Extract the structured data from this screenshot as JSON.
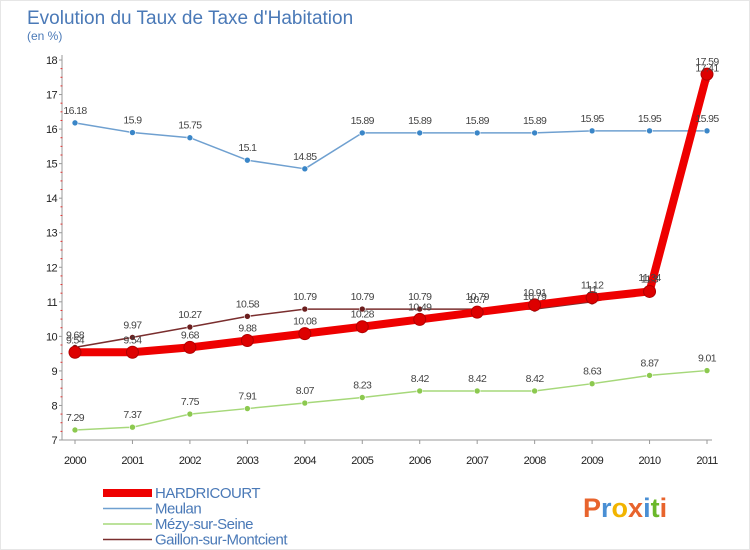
{
  "header": {
    "title": "Evolution du Taux de Taxe d'Habitation",
    "subtitle": "(en %)"
  },
  "logo": {
    "text": "Proxiti",
    "letters": [
      "P",
      "r",
      "o",
      "x",
      "i",
      "t",
      "i"
    ],
    "colors": [
      "#e8642d",
      "#4a8fd4",
      "#f2b400",
      "#e8642d",
      "#4a8fd4",
      "#6bb82a",
      "#e8642d"
    ]
  },
  "chart_data": {
    "type": "line",
    "title": "Evolution du Taux de Taxe d'Habitation",
    "subtitle": "(en %)",
    "x": [
      "2000",
      "2001",
      "2002",
      "2003",
      "2004",
      "2005",
      "2006",
      "2007",
      "2008",
      "2009",
      "2010",
      "2011"
    ],
    "yticks": [
      "7",
      "8",
      "9",
      "10",
      "11",
      "12",
      "13",
      "14",
      "15",
      "16",
      "17",
      "18"
    ],
    "ylim": [
      7,
      18
    ],
    "grid": false,
    "legend_position": "bottom-left",
    "series": [
      {
        "name": "Meulan",
        "color": "#6fa0d0",
        "marker_color": "#3a86c8",
        "values": [
          16.18,
          15.9,
          15.75,
          15.1,
          14.85,
          15.89,
          15.89,
          15.89,
          15.89,
          15.95,
          15.95,
          15.95
        ],
        "labels": [
          "16.18",
          "15.9",
          "15.75",
          "15.1",
          "14.85",
          "15.89",
          "15.89",
          "15.89",
          "15.89",
          "15.95",
          "15.95",
          "15.95"
        ]
      },
      {
        "name": "Mézy-sur-Seine",
        "color": "#a6d87a",
        "marker_color": "#8cc94f",
        "values": [
          7.29,
          7.37,
          7.75,
          7.91,
          8.07,
          8.23,
          8.42,
          8.42,
          8.42,
          8.63,
          8.87,
          9.01
        ],
        "labels": [
          "7.29",
          "7.37",
          "7.75",
          "7.91",
          "8.07",
          "8.23",
          "8.42",
          "8.42",
          "8.42",
          "8.63",
          "8.87",
          "9.01"
        ]
      },
      {
        "name": "Gaillon-sur-Montcient",
        "color": "#7a2e2e",
        "marker_color": "#6b1e1e",
        "values": [
          9.68,
          9.97,
          10.27,
          10.58,
          10.79,
          10.79,
          10.79,
          10.79,
          10.79,
          11.0,
          11.34,
          17.41
        ],
        "labels": [
          "9.68",
          "9.97",
          "10.27",
          "10.58",
          "10.79",
          "10.79",
          "10.79",
          "10.79",
          "10.79",
          "11",
          "11.34",
          "17.41"
        ]
      },
      {
        "name": "HARDRICOURT",
        "color": "#ee0000",
        "marker_color": "#dd0000",
        "values": [
          9.54,
          9.54,
          9.68,
          9.88,
          10.08,
          10.28,
          10.49,
          10.7,
          10.91,
          11.12,
          11.3,
          17.59
        ],
        "labels": [
          "9.54",
          "9.54",
          "9.68",
          "9.88",
          "10.08",
          "10.28",
          "10.49",
          "10.7",
          "10.91",
          "11.12",
          "11.3",
          "17.59"
        ]
      }
    ]
  }
}
